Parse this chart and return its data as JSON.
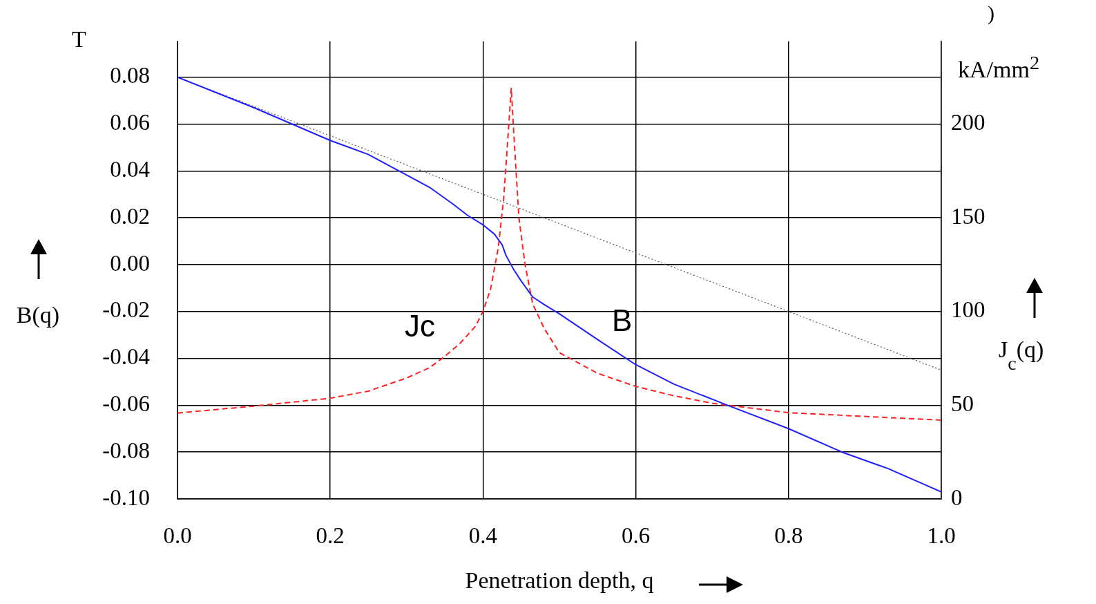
{
  "chart_data": {
    "type": "line",
    "xlabel": "Penetration depth, q",
    "ylabel": "B(q)",
    "y2label": "J$_{c}$(q)",
    "annotations": [
      "T",
      "kA/mm$^{2}$",
      ")",
      "Jc",
      "B"
    ],
    "xlim": [
      0,
      1
    ],
    "xticks": [
      {
        "value": 0,
        "label": "0.0"
      },
      0.2,
      0.4,
      0.6,
      0.8,
      {
        "value": 1,
        "label": "1.0"
      }
    ],
    "ylim": [
      -0.1,
      0.0953
    ],
    "yticks": [
      0.08,
      0.06,
      0.04,
      0.02,
      {
        "value": 0,
        "label": "0.00"
      },
      -0.02,
      -0.04,
      -0.06,
      -0.08,
      {
        "value": -0.1,
        "label": "-0.10"
      }
    ],
    "y2lim": [
      0,
      244
    ],
    "y2ticks": [
      0,
      50,
      100,
      150,
      200
    ],
    "grid": true,
    "legend": false,
    "marker": "none",
    "series": [
      {
        "color": "#1f1fff",
        "line_style": "solid",
        "x": [
          0,
          0.1,
          0.15,
          0.2,
          0.25,
          0.29,
          0.33,
          0.36,
          0.38,
          0.4,
          0.415,
          0.425,
          0.43,
          0.44,
          0.45,
          0.465,
          0.48,
          0.5,
          0.55,
          0.6,
          0.65,
          0.72,
          0.8,
          0.87,
          0.93,
          1
        ],
        "values": [
          0.08,
          0.067,
          0.06,
          0.053,
          0.047,
          0.04,
          0.033,
          0.026,
          0.021,
          0.017,
          0.013,
          0.0085,
          0.004,
          -0.002,
          -0.007,
          -0.0138,
          -0.017,
          -0.021,
          -0.032,
          -0.0427,
          -0.051,
          -0.06,
          -0.07,
          -0.08,
          -0.087,
          -0.097
        ]
      },
      {
        "color": "#555555",
        "line_style": "dotted",
        "x": [
          0,
          1
        ],
        "values": [
          0.08,
          -0.045
        ]
      },
      {
        "color": "#ff2020",
        "line_style": "dashed",
        "axis": "y2",
        "x": [
          0,
          0.1,
          0.2,
          0.25,
          0.3,
          0.33,
          0.35,
          0.37,
          0.39,
          0.4,
          0.41,
          0.42,
          0.427,
          0.433,
          0.437,
          0.441,
          0.447,
          0.455,
          0.465,
          0.48,
          0.5,
          0.55,
          0.6,
          0.65,
          0.7,
          0.8,
          0.9,
          1
        ],
        "values": [
          45.8,
          49.5,
          53.7,
          57.5,
          64.5,
          70,
          76,
          83,
          92,
          100,
          112,
          134,
          160,
          195,
          219,
          190,
          150,
          125,
          104,
          91,
          78,
          67,
          60,
          55,
          51,
          46,
          44,
          42
        ]
      }
    ]
  }
}
